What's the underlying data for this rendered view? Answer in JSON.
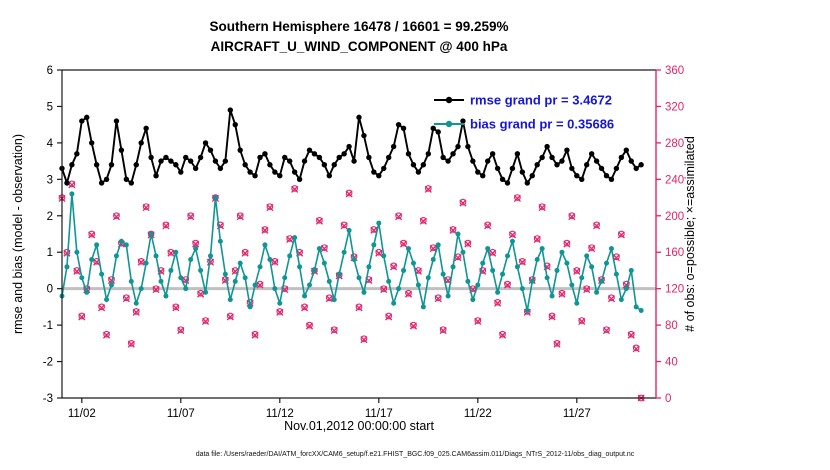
{
  "title": {
    "line1": "Southern Hemisphere 16478 / 16601 = 99.259%",
    "line2": "AIRCRAFT_U_WIND_COMPONENT @ 400 hPa"
  },
  "caption": "data file: /Users/raeder/DAI/ATM_forcXX/CAM6_setup/f.e21.FHIST_BGC.f09_025.CAM6assim.011/Diags_NTrS_2012-11/obs_diag_output.nc",
  "colors": {
    "rmse": "#000000",
    "bias": "#0f9595",
    "obs": "#e2246c",
    "legend_text": "#1414e0",
    "zero_line": "#c0c0c0",
    "axis": "#1a1a1a"
  },
  "chart_data": {
    "type": "line",
    "title": "Southern Hemisphere 16478 / 16601 = 99.259% — AIRCRAFT_U_WIND_COMPONENT @ 400 hPa",
    "xlabel": "Nov.01,2012 00:00:00 start",
    "ylabel_left": "rmse and bias (model - observation)",
    "ylabel_right": "# of obs: o=possible; ×=assimilated",
    "x_start_day": 0,
    "x_step_days": 0.25,
    "x_range": [
      0,
      30
    ],
    "y_left_range": [
      -3,
      6
    ],
    "y_left_ticks": [
      -3,
      -2,
      -1,
      0,
      1,
      2,
      3,
      4,
      5,
      6
    ],
    "y_right_range": [
      0,
      360
    ],
    "y_right_ticks": [
      0,
      40,
      80,
      120,
      160,
      200,
      240,
      280,
      320,
      360
    ],
    "x_ticks": [
      {
        "day": 1,
        "label": "11/02"
      },
      {
        "day": 6,
        "label": "11/07"
      },
      {
        "day": 11,
        "label": "11/12"
      },
      {
        "day": 16,
        "label": "11/17"
      },
      {
        "day": 21,
        "label": "11/22"
      },
      {
        "day": 26,
        "label": "11/27"
      }
    ],
    "legend": [
      {
        "label": "rmse grand pr = 3.4672",
        "series": "rmse"
      },
      {
        "label": "bias grand pr = 0.35686",
        "series": "bias"
      }
    ],
    "series": [
      {
        "name": "rmse",
        "type": "line",
        "axis": "left",
        "values": [
          3.3,
          2.9,
          3.4,
          3.7,
          4.6,
          4.7,
          4.0,
          3.4,
          2.9,
          3.0,
          3.4,
          4.6,
          3.8,
          3.0,
          2.9,
          3.4,
          4.0,
          4.4,
          3.6,
          3.1,
          3.5,
          3.6,
          3.5,
          3.4,
          3.2,
          3.6,
          3.5,
          3.3,
          3.6,
          4.0,
          3.8,
          3.5,
          3.3,
          3.5,
          4.9,
          4.5,
          3.8,
          3.4,
          3.2,
          3.1,
          3.6,
          3.7,
          3.4,
          3.2,
          3.1,
          3.6,
          3.5,
          3.2,
          3.0,
          3.5,
          3.8,
          3.7,
          3.6,
          3.4,
          3.1,
          3.4,
          3.6,
          3.7,
          3.9,
          3.5,
          4.7,
          4.2,
          3.6,
          3.2,
          3.1,
          3.3,
          3.6,
          3.9,
          4.5,
          4.4,
          3.7,
          3.4,
          3.2,
          3.4,
          3.7,
          4.4,
          4.3,
          3.6,
          3.5,
          3.7,
          3.9,
          4.6,
          3.9,
          3.5,
          3.2,
          3.1,
          3.5,
          3.7,
          3.3,
          3.0,
          2.9,
          3.3,
          3.7,
          3.2,
          2.9,
          3.1,
          3.4,
          3.6,
          3.9,
          3.6,
          3.4,
          3.5,
          3.8,
          3.3,
          3.1,
          3.0,
          3.4,
          3.7,
          3.5,
          3.3,
          3.1,
          3.0,
          3.3,
          3.6,
          3.8,
          3.5,
          3.3,
          3.4
        ]
      },
      {
        "name": "bias",
        "type": "line",
        "axis": "left",
        "values": [
          -0.2,
          0.6,
          2.6,
          1.0,
          0.3,
          -0.1,
          0.8,
          1.2,
          0.4,
          -0.3,
          0.1,
          0.9,
          1.3,
          1.2,
          0.2,
          -0.4,
          0.0,
          0.7,
          1.5,
          0.9,
          0.2,
          -0.2,
          0.5,
          1.0,
          0.3,
          0.0,
          0.8,
          1.1,
          0.5,
          -0.1,
          0.9,
          2.5,
          1.3,
          0.4,
          -0.3,
          0.2,
          0.7,
          0.3,
          -0.5,
          0.1,
          0.6,
          1.2,
          0.8,
          0.0,
          -0.4,
          0.3,
          0.9,
          1.4,
          0.6,
          -0.2,
          0.1,
          0.5,
          1.1,
          0.7,
          0.2,
          -0.3,
          0.4,
          1.0,
          1.6,
          0.8,
          0.3,
          -0.1,
          0.6,
          1.2,
          1.8,
          0.9,
          0.2,
          -0.4,
          0.0,
          0.5,
          1.1,
          0.7,
          0.1,
          -0.5,
          0.3,
          0.8,
          1.2,
          0.4,
          -0.2,
          0.6,
          1.5,
          1.0,
          0.2,
          -0.3,
          0.1,
          0.7,
          1.1,
          0.5,
          -0.1,
          0.4,
          0.9,
          1.3,
          0.6,
          0.0,
          -0.6,
          0.2,
          0.8,
          1.1,
          0.3,
          -0.2,
          0.5,
          1.0,
          0.7,
          0.1,
          -0.4,
          0.3,
          0.9,
          0.6,
          -0.1,
          0.2,
          0.7,
          1.1,
          0.4,
          -0.3,
          0.0,
          0.5,
          -0.5,
          -0.6
        ]
      },
      {
        "name": "possible",
        "type": "scatter",
        "marker": "o",
        "axis": "right",
        "values": [
          220,
          160,
          235,
          140,
          90,
          120,
          180,
          150,
          100,
          70,
          130,
          200,
          170,
          110,
          60,
          95,
          150,
          210,
          180,
          120,
          140,
          190,
          160,
          100,
          75,
          130,
          200,
          170,
          115,
          85,
          150,
          220,
          190,
          130,
          90,
          140,
          200,
          160,
          105,
          70,
          125,
          185,
          210,
          150,
          95,
          120,
          175,
          230,
          160,
          100,
          80,
          140,
          195,
          165,
          110,
          75,
          135,
          190,
          225,
          155,
          100,
          65,
          130,
          185,
          160,
          120,
          90,
          145,
          200,
          170,
          115,
          80,
          140,
          195,
          230,
          165,
          110,
          75,
          130,
          185,
          155,
          215,
          170,
          120,
          85,
          140,
          190,
          160,
          105,
          70,
          125,
          180,
          220,
          150,
          95,
          130,
          175,
          210,
          145,
          90,
          60,
          115,
          170,
          200,
          140,
          85,
          120,
          165,
          190,
          130,
          75,
          110,
          155,
          180,
          125,
          70,
          55,
          0
        ]
      },
      {
        "name": "assimilated",
        "type": "scatter",
        "marker": "x",
        "axis": "right",
        "values": [
          219,
          159,
          234,
          139,
          89,
          119,
          179,
          149,
          99,
          69,
          129,
          199,
          169,
          109,
          59,
          94,
          149,
          209,
          179,
          119,
          139,
          189,
          159,
          99,
          74,
          129,
          199,
          169,
          114,
          84,
          149,
          219,
          189,
          129,
          89,
          139,
          199,
          159,
          104,
          69,
          124,
          184,
          209,
          149,
          94,
          119,
          174,
          229,
          159,
          99,
          79,
          139,
          194,
          164,
          109,
          74,
          134,
          189,
          224,
          154,
          99,
          64,
          129,
          184,
          159,
          119,
          89,
          144,
          199,
          169,
          114,
          79,
          139,
          194,
          229,
          164,
          109,
          74,
          129,
          184,
          154,
          214,
          169,
          119,
          84,
          139,
          189,
          159,
          104,
          69,
          124,
          179,
          219,
          149,
          94,
          129,
          174,
          209,
          144,
          89,
          59,
          114,
          169,
          199,
          139,
          84,
          119,
          164,
          189,
          129,
          74,
          109,
          154,
          179,
          124,
          69,
          54,
          0
        ]
      }
    ]
  }
}
